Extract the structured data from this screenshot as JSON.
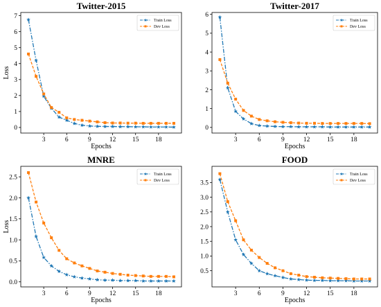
{
  "colors": {
    "train": "#1f77b4",
    "dev": "#ff7f0e"
  },
  "chart_data": [
    {
      "type": "line",
      "title": "Twitter-2015",
      "xlabel": "Epochs",
      "ylabel": "Loss",
      "xlim": [
        0,
        21
      ],
      "ylim": [
        -0.35,
        7.2
      ],
      "xticks": [
        3,
        6,
        9,
        12,
        15,
        18
      ],
      "yticks": [
        0,
        1,
        2,
        3,
        4,
        5,
        6,
        7
      ],
      "legend_position": "top-right",
      "x": [
        1,
        2,
        3,
        4,
        5,
        6,
        7,
        8,
        9,
        10,
        11,
        12,
        13,
        14,
        15,
        16,
        17,
        18,
        19,
        20
      ],
      "series": [
        {
          "name": "Train Loss",
          "color": "#1f77b4",
          "marker": "star",
          "linestyle": "dashdot",
          "values": [
            6.75,
            4.2,
            1.95,
            1.2,
            0.65,
            0.45,
            0.25,
            0.14,
            0.09,
            0.07,
            0.06,
            0.06,
            0.05,
            0.05,
            0.04,
            0.04,
            0.03,
            0.03,
            0.03,
            0.02
          ]
        },
        {
          "name": "Dev Loss",
          "color": "#ff7f0e",
          "marker": "square",
          "linestyle": "dashed",
          "values": [
            4.6,
            3.2,
            2.1,
            1.25,
            0.95,
            0.6,
            0.5,
            0.45,
            0.4,
            0.35,
            0.3,
            0.28,
            0.28,
            0.27,
            0.27,
            0.26,
            0.26,
            0.26,
            0.26,
            0.26
          ]
        }
      ]
    },
    {
      "type": "line",
      "title": "Twitter-2017",
      "xlabel": "Epochs",
      "ylabel": "",
      "xlim": [
        0,
        21
      ],
      "ylim": [
        -0.3,
        6.1
      ],
      "xticks": [
        3,
        6,
        9,
        12,
        15,
        18
      ],
      "yticks": [
        0,
        1,
        2,
        3,
        4,
        5,
        6
      ],
      "legend_position": "top-right",
      "x": [
        1,
        2,
        3,
        4,
        5,
        6,
        7,
        8,
        9,
        10,
        11,
        12,
        13,
        14,
        15,
        16,
        17,
        18,
        19,
        20
      ],
      "series": [
        {
          "name": "Train Loss",
          "color": "#1f77b4",
          "marker": "star",
          "linestyle": "dashdot",
          "values": [
            5.85,
            2.1,
            0.85,
            0.45,
            0.2,
            0.1,
            0.07,
            0.05,
            0.04,
            0.04,
            0.03,
            0.03,
            0.03,
            0.03,
            0.02,
            0.02,
            0.02,
            0.02,
            0.02,
            0.02
          ]
        },
        {
          "name": "Dev Loss",
          "color": "#ff7f0e",
          "marker": "square",
          "linestyle": "dashed",
          "values": [
            3.6,
            2.35,
            1.5,
            0.9,
            0.6,
            0.42,
            0.35,
            0.3,
            0.27,
            0.25,
            0.23,
            0.22,
            0.22,
            0.21,
            0.21,
            0.21,
            0.21,
            0.21,
            0.21,
            0.2
          ]
        }
      ]
    },
    {
      "type": "line",
      "title": "MNRE",
      "xlabel": "Epochs",
      "ylabel": "Loss",
      "xlim": [
        0,
        21
      ],
      "ylim": [
        -0.12,
        2.75
      ],
      "xticks": [
        3,
        6,
        9,
        12,
        15,
        18
      ],
      "yticks": [
        0.0,
        0.5,
        1.0,
        1.5,
        2.0,
        2.5
      ],
      "ytick_labels": [
        "0.0",
        "0.5",
        "1.0",
        "1.5",
        "2.0",
        "2.5"
      ],
      "legend_position": "top-right",
      "x": [
        1,
        2,
        3,
        4,
        5,
        6,
        7,
        8,
        9,
        10,
        11,
        12,
        13,
        14,
        15,
        16,
        17,
        18,
        19,
        20
      ],
      "series": [
        {
          "name": "Train Loss",
          "color": "#1f77b4",
          "marker": "star",
          "linestyle": "dashdot",
          "values": [
            2.0,
            1.08,
            0.58,
            0.38,
            0.25,
            0.17,
            0.12,
            0.09,
            0.07,
            0.05,
            0.04,
            0.04,
            0.03,
            0.03,
            0.03,
            0.02,
            0.02,
            0.02,
            0.02,
            0.02
          ]
        },
        {
          "name": "Dev Loss",
          "color": "#ff7f0e",
          "marker": "square",
          "linestyle": "dashed",
          "values": [
            2.6,
            1.9,
            1.4,
            1.05,
            0.75,
            0.55,
            0.45,
            0.38,
            0.32,
            0.26,
            0.23,
            0.2,
            0.18,
            0.16,
            0.15,
            0.14,
            0.13,
            0.13,
            0.13,
            0.12
          ]
        }
      ]
    },
    {
      "type": "line",
      "title": "FOOD",
      "xlabel": "Epochs",
      "ylabel": "",
      "xlim": [
        0,
        21
      ],
      "ylim": [
        -0.05,
        4.05
      ],
      "xticks": [
        3,
        6,
        9,
        12,
        15,
        18
      ],
      "yticks": [
        0.5,
        1.0,
        1.5,
        2.0,
        2.5,
        3.0,
        3.5
      ],
      "ytick_labels": [
        "0.5",
        "1.0",
        "1.5",
        "2.0",
        "2.5",
        "3.0",
        "3.5"
      ],
      "legend_position": "top-right",
      "x": [
        1,
        2,
        3,
        4,
        5,
        6,
        7,
        8,
        9,
        10,
        11,
        12,
        13,
        14,
        15,
        16,
        17,
        18,
        19,
        20
      ],
      "series": [
        {
          "name": "Train Loss",
          "color": "#1f77b4",
          "marker": "star",
          "linestyle": "dashdot",
          "values": [
            3.6,
            2.5,
            1.55,
            1.05,
            0.75,
            0.5,
            0.4,
            0.33,
            0.27,
            0.22,
            0.2,
            0.18,
            0.17,
            0.17,
            0.16,
            0.16,
            0.16,
            0.15,
            0.15,
            0.15
          ]
        },
        {
          "name": "Dev Loss",
          "color": "#ff7f0e",
          "marker": "square",
          "linestyle": "dashed",
          "values": [
            3.8,
            2.85,
            2.2,
            1.55,
            1.2,
            0.95,
            0.75,
            0.6,
            0.5,
            0.4,
            0.35,
            0.3,
            0.28,
            0.26,
            0.25,
            0.24,
            0.23,
            0.22,
            0.22,
            0.22
          ]
        }
      ]
    }
  ]
}
